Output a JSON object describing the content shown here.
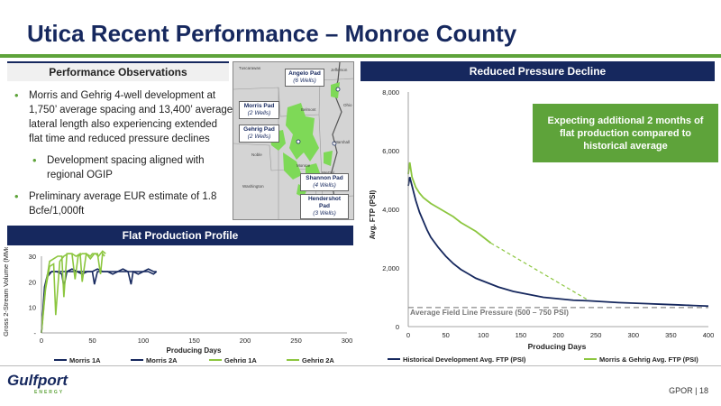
{
  "title": "Utica Recent Performance – Monroe County",
  "observations": {
    "header": "Performance Observations",
    "bullets": [
      "Morris and Gehrig 4-well development at 1,750’ average spacing and 13,400’ average lateral length also experiencing extended flat time and reduced pressure declines",
      "Development spacing aligned with regional OGIP",
      "Preliminary average EUR estimate of 1.8 Bcfe/1,000ft"
    ]
  },
  "map": {
    "pads": [
      {
        "name": "Angelo Pad",
        "wells": "(6 Wells)"
      },
      {
        "name": "Morris Pad",
        "wells": "(2 Wells)"
      },
      {
        "name": "Gehrig Pad",
        "wells": "(2 Wells)"
      },
      {
        "name": "Shannon Pad",
        "wells": "(4 Wells)"
      },
      {
        "name": "Hendershot Pad",
        "wells": "(3 Wells)"
      }
    ],
    "towns": [
      "Tuscarawas",
      "Jefferson",
      "Belmont",
      "Ohio",
      "Marshall",
      "Noble",
      "Monroe",
      "Wetzel",
      "Washington"
    ]
  },
  "flat_chart": {
    "header": "Flat Production Profile",
    "ylabel": "Gross 2-Stream Volume (MMcfed)",
    "xlabel": "Producing Days",
    "yticks": [
      "-",
      "10",
      "20",
      "30"
    ],
    "xticks": [
      "0",
      "50",
      "100",
      "150",
      "200",
      "250",
      "300"
    ],
    "legend": [
      "Morris 1A",
      "Morris 2A",
      "Gehrig 1A",
      "Gehrig 2A"
    ]
  },
  "pressure_chart": {
    "header": "Reduced Pressure Decline",
    "ylabel": "Avg. FTP (PSI)",
    "xlabel": "Producing Days",
    "yticks": [
      "0",
      "2,000",
      "4,000",
      "6,000",
      "8,000"
    ],
    "xticks": [
      "0",
      "50",
      "100",
      "150",
      "200",
      "250",
      "300",
      "350",
      "400"
    ],
    "field_line_label": "Average Field Line Pressure (500 – 750 PSI)",
    "callout": "Expecting additional 2 months of flat production compared to historical average",
    "legend": [
      "Historical Development Avg. FTP (PSI)",
      "Morris & Gehrig Avg. FTP (PSI)"
    ]
  },
  "footer": {
    "logo": "Gulfport",
    "logo_sub": "ENERGY",
    "page": "GPOR | 18"
  },
  "colors": {
    "navy": "#16285e",
    "green": "#5ea33a",
    "light_green": "#8cc63f",
    "gray": "#888888"
  },
  "chart_data": [
    {
      "type": "line",
      "title": "Flat Production Profile",
      "xlabel": "Producing Days",
      "ylabel": "Gross 2-Stream Volume (MMcfed)",
      "xlim": [
        0,
        300
      ],
      "ylim": [
        0,
        30
      ],
      "series": [
        {
          "name": "Morris 1A",
          "x": [
            0,
            3,
            6,
            10,
            15,
            20,
            22,
            25,
            30,
            35,
            40,
            45,
            50,
            52,
            55,
            60,
            65,
            70,
            75,
            80,
            85,
            90,
            95,
            100,
            105,
            110,
            113
          ],
          "y": [
            0,
            16,
            22,
            24,
            24,
            23,
            18,
            24,
            24,
            24,
            23,
            24,
            24,
            19,
            24,
            24,
            24,
            23,
            24,
            24,
            24,
            24,
            23,
            24,
            24,
            23,
            24
          ]
        },
        {
          "name": "Morris 2A",
          "x": [
            0,
            3,
            6,
            10,
            15,
            20,
            25,
            30,
            35,
            40,
            45,
            50,
            55,
            60,
            65,
            70,
            75,
            80,
            85,
            88,
            90,
            95,
            100,
            105,
            110,
            113
          ],
          "y": [
            0,
            18,
            23,
            24,
            24,
            24,
            24,
            25,
            24,
            24,
            24,
            24,
            25,
            24,
            24,
            24,
            24,
            25,
            24,
            19,
            24,
            24,
            24,
            25,
            24,
            24
          ]
        },
        {
          "name": "Gehrig 1A",
          "x": [
            0,
            4,
            8,
            12,
            14,
            18,
            22,
            26,
            30,
            33,
            36,
            40,
            44,
            48,
            52,
            55,
            58,
            60,
            62
          ],
          "y": [
            0,
            17,
            26,
            27,
            7,
            28,
            30,
            31,
            31,
            21,
            30,
            31,
            31,
            29,
            31,
            31,
            23,
            31,
            30
          ]
        },
        {
          "name": "Gehrig 2A",
          "x": [
            0,
            4,
            8,
            12,
            16,
            20,
            22,
            25,
            30,
            34,
            38,
            40,
            44,
            48,
            50,
            53,
            56,
            60,
            63
          ],
          "y": [
            0,
            18,
            28,
            29,
            30,
            30,
            14,
            31,
            31,
            30,
            31,
            20,
            31,
            30,
            31,
            31,
            30,
            32,
            31
          ]
        }
      ]
    },
    {
      "type": "line",
      "title": "Reduced Pressure Decline",
      "xlabel": "Producing Days",
      "ylabel": "Avg. FTP (PSI)",
      "xlim": [
        0,
        400
      ],
      "ylim": [
        0,
        8000
      ],
      "series": [
        {
          "name": "Historical Development Avg. FTP (PSI)",
          "x": [
            0,
            2,
            5,
            10,
            15,
            20,
            25,
            30,
            40,
            50,
            60,
            70,
            80,
            90,
            100,
            110,
            120,
            140,
            160,
            180,
            200,
            220,
            240,
            260,
            280,
            300,
            320,
            340,
            360,
            380,
            400
          ],
          "y": [
            4800,
            5100,
            4800,
            4300,
            3900,
            3600,
            3300,
            3050,
            2700,
            2400,
            2150,
            1950,
            1800,
            1650,
            1550,
            1450,
            1350,
            1200,
            1100,
            1000,
            950,
            900,
            880,
            850,
            820,
            800,
            780,
            760,
            740,
            720,
            700
          ]
        },
        {
          "name": "Morris & Gehrig Avg. FTP (PSI)",
          "x": [
            0,
            2,
            5,
            10,
            15,
            20,
            25,
            30,
            40,
            50,
            60,
            70,
            80,
            90,
            100,
            110
          ],
          "y": [
            5200,
            5600,
            5100,
            4750,
            4550,
            4400,
            4300,
            4200,
            4050,
            3900,
            3750,
            3550,
            3400,
            3250,
            3050,
            2850
          ]
        },
        {
          "name": "Morris & Gehrig trend",
          "x": [
            110,
            240
          ],
          "y": [
            2850,
            900
          ]
        },
        {
          "name": "Average Field Line Pressure",
          "x": [
            0,
            400
          ],
          "y": [
            650,
            650
          ]
        }
      ]
    }
  ]
}
